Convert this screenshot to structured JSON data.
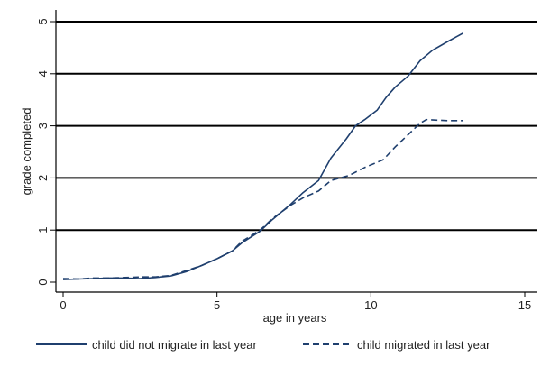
{
  "chart_data": {
    "type": "line",
    "xlabel": "age in years",
    "ylabel": "grade completed",
    "xlim": [
      0,
      15
    ],
    "ylim": [
      0,
      5
    ],
    "xticks": [
      0,
      5,
      10,
      15
    ],
    "yticks": [
      0,
      1,
      2,
      3,
      4,
      5
    ],
    "grid": "horizontal",
    "legend_position": "bottom",
    "series": [
      {
        "name": "child did not migrate in last year",
        "style": "solid",
        "color": "#1f3f6e",
        "points": [
          [
            0,
            0.05
          ],
          [
            0.5,
            0.06
          ],
          [
            1,
            0.07
          ],
          [
            1.5,
            0.08
          ],
          [
            2,
            0.08
          ],
          [
            2.5,
            0.07
          ],
          [
            3,
            0.09
          ],
          [
            3.5,
            0.12
          ],
          [
            4,
            0.2
          ],
          [
            4.5,
            0.32
          ],
          [
            5,
            0.45
          ],
          [
            5.5,
            0.6
          ],
          [
            5.8,
            0.75
          ],
          [
            6.4,
            0.98
          ],
          [
            6.8,
            1.2
          ],
          [
            7.4,
            1.5
          ],
          [
            7.8,
            1.72
          ],
          [
            8.3,
            1.95
          ],
          [
            8.7,
            2.38
          ],
          [
            9.2,
            2.75
          ],
          [
            9.5,
            3.0
          ],
          [
            9.8,
            3.12
          ],
          [
            10.2,
            3.3
          ],
          [
            10.5,
            3.55
          ],
          [
            10.8,
            3.75
          ],
          [
            11.2,
            3.95
          ],
          [
            11.6,
            4.25
          ],
          [
            12,
            4.45
          ],
          [
            12.5,
            4.62
          ],
          [
            13,
            4.78
          ]
        ]
      },
      {
        "name": "child migrated in last year",
        "style": "dashed",
        "color": "#1f3f6e",
        "points": [
          [
            0,
            0.07
          ],
          [
            0.5,
            0.06
          ],
          [
            1,
            0.08
          ],
          [
            1.5,
            0.08
          ],
          [
            2,
            0.09
          ],
          [
            2.5,
            0.1
          ],
          [
            3,
            0.1
          ],
          [
            3.5,
            0.13
          ],
          [
            4,
            0.22
          ],
          [
            4.5,
            0.32
          ],
          [
            5,
            0.45
          ],
          [
            5.5,
            0.6
          ],
          [
            5.8,
            0.78
          ],
          [
            6.4,
            1.0
          ],
          [
            6.8,
            1.22
          ],
          [
            7.4,
            1.48
          ],
          [
            7.8,
            1.62
          ],
          [
            8.3,
            1.75
          ],
          [
            8.7,
            1.95
          ],
          [
            9.3,
            2.05
          ],
          [
            9.8,
            2.2
          ],
          [
            10.4,
            2.35
          ],
          [
            10.8,
            2.6
          ],
          [
            11.3,
            2.88
          ],
          [
            11.6,
            3.05
          ],
          [
            11.8,
            3.12
          ],
          [
            12.5,
            3.1
          ],
          [
            13,
            3.1
          ]
        ]
      }
    ]
  }
}
